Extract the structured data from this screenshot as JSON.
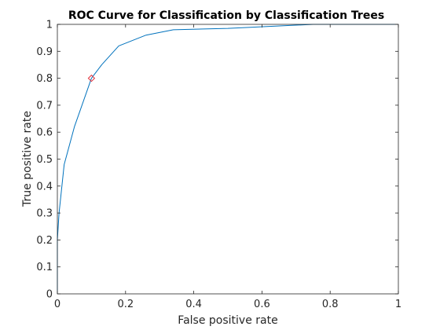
{
  "chart_data": {
    "type": "line",
    "title": "ROC Curve for Classification by Classification Trees",
    "xlabel": "False positive rate",
    "ylabel": "True positive rate",
    "xlim": [
      0,
      1
    ],
    "ylim": [
      0,
      1
    ],
    "x_ticks": [
      "0",
      "0.2",
      "0.4",
      "0.6",
      "0.8",
      "1"
    ],
    "y_ticks": [
      "0",
      "0.1",
      "0.2",
      "0.3",
      "0.4",
      "0.5",
      "0.6",
      "0.7",
      "0.8",
      "0.9",
      "1"
    ],
    "grid": false,
    "series": [
      {
        "color": "#0072BD",
        "x": [
          0,
          0,
          0.005,
          0.02,
          0.05,
          0.1,
          0.13,
          0.18,
          0.26,
          0.34,
          0.5,
          0.75,
          1.0
        ],
        "y": [
          0,
          0.2,
          0.3,
          0.48,
          0.62,
          0.8,
          0.85,
          0.92,
          0.96,
          0.98,
          0.985,
          1.0,
          1.0
        ]
      }
    ],
    "marker": {
      "x": 0.1,
      "y": 0.8,
      "color": "#E0303A",
      "shape": "diamond"
    }
  }
}
